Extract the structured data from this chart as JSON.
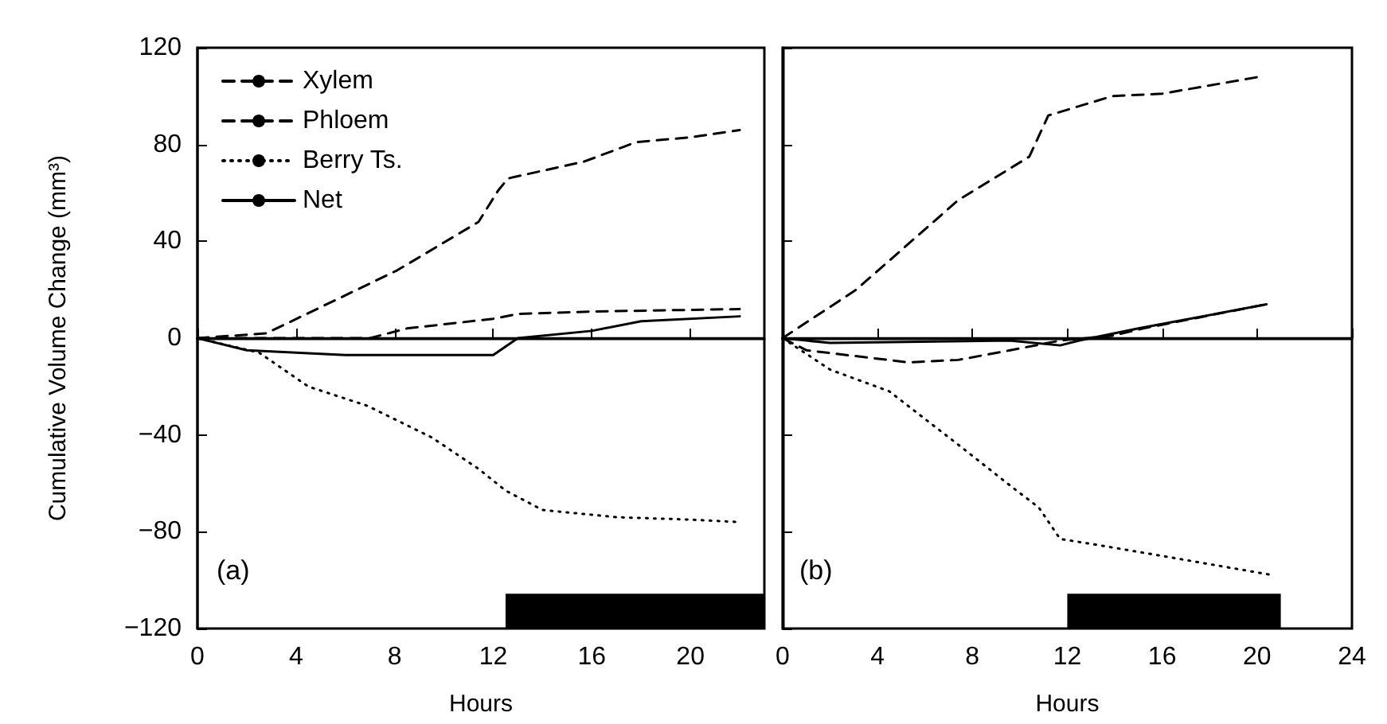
{
  "chart_data": [
    {
      "type": "line",
      "ylabel": "Cumulative Volume Change (mm³)",
      "xlabel": "Hours",
      "xlim": [
        0,
        23
      ],
      "xticks": [
        0,
        4,
        8,
        12,
        16,
        20
      ],
      "ylim": [
        -120,
        120
      ],
      "yticks": [
        -120,
        -80,
        -40,
        0,
        40,
        80,
        120
      ],
      "legend": "top left",
      "grid": false,
      "marker": "none",
      "annotations": [
        "(a)"
      ],
      "ref_lines": [
        {
          "axis": "y",
          "value": 0,
          "color": "#000000"
        }
      ],
      "bands": [
        {
          "axis": "x",
          "from": 12.5,
          "to": 23,
          "color": "#000000"
        }
      ],
      "series": [
        {
          "name": "Xylem",
          "color": "#000000",
          "line_style": "dashed",
          "x": [
            0,
            2.8,
            8.1,
            11.4,
            12.2,
            12.6,
            15.7,
            17.8,
            20,
            22
          ],
          "values": [
            0,
            2,
            28,
            48,
            61,
            66,
            73,
            81,
            83,
            86
          ]
        },
        {
          "name": "Phloem",
          "color": "#000000",
          "line_style": "dashed",
          "x": [
            0,
            4,
            7,
            8.5,
            12,
            13,
            16,
            22
          ],
          "values": [
            0,
            0,
            0,
            4,
            8,
            10,
            11,
            12
          ]
        },
        {
          "name": "Berry Ts.",
          "color": "#000000",
          "line_style": "dotted",
          "x": [
            0,
            2.5,
            4.5,
            6.9,
            9.5,
            11.4,
            12.5,
            14,
            17,
            20,
            22
          ],
          "values": [
            0,
            -6,
            -20,
            -28,
            -41,
            -54,
            -63,
            -71,
            -74,
            -75,
            -76
          ]
        },
        {
          "name": "Net",
          "color": "#000000",
          "line_style": "solid",
          "x": [
            0,
            2,
            6,
            12,
            13,
            16,
            18,
            22
          ],
          "values": [
            0,
            -5,
            -7,
            -7,
            0,
            3,
            7,
            9
          ]
        }
      ]
    },
    {
      "type": "line",
      "xlabel": "Hours",
      "xlim": [
        0,
        24
      ],
      "xticks": [
        0,
        4,
        8,
        12,
        16,
        20,
        24
      ],
      "ylim": [
        -120,
        120
      ],
      "yticks": [
        -120,
        -80,
        -40,
        0,
        40,
        80,
        120
      ],
      "tick_labels": "x",
      "legend": false,
      "grid": false,
      "marker": "none",
      "annotations": [
        "(b)"
      ],
      "ref_lines": [
        {
          "axis": "y",
          "value": 0,
          "color": "#000000"
        }
      ],
      "bands": [
        {
          "axis": "x",
          "from": 12,
          "to": 21,
          "color": "#000000"
        }
      ],
      "series": [
        {
          "color": "#000000",
          "line_style": "dashed",
          "x": [
            0,
            1,
            5.3,
            7.4,
            9.6,
            11.7,
            13.9,
            15.2,
            20.4
          ],
          "values": [
            0,
            -5,
            -10,
            -9,
            -5,
            -1,
            1,
            4,
            14
          ]
        },
        {
          "color": "#000000",
          "line_style": "dashed",
          "x": [
            0,
            3.1,
            7.4,
            10.4,
            11.2,
            13.9,
            16,
            20.1
          ],
          "values": [
            0,
            20,
            57,
            75,
            92,
            100,
            101,
            108
          ]
        },
        {
          "color": "#000000",
          "line_style": "dotted",
          "x": [
            0,
            2,
            4.5,
            7.4,
            9.6,
            10.8,
            11.7,
            13,
            16,
            20.7
          ],
          "values": [
            0,
            -13,
            -22,
            -44,
            -61,
            -70,
            -83,
            -85,
            -90,
            -98
          ]
        },
        {
          "color": "#000000",
          "line_style": "solid",
          "x": [
            0,
            2,
            9.6,
            11.7,
            12.5,
            15,
            20.4
          ],
          "values": [
            0,
            -2,
            -1,
            -3,
            -1,
            4,
            14
          ]
        }
      ]
    }
  ]
}
